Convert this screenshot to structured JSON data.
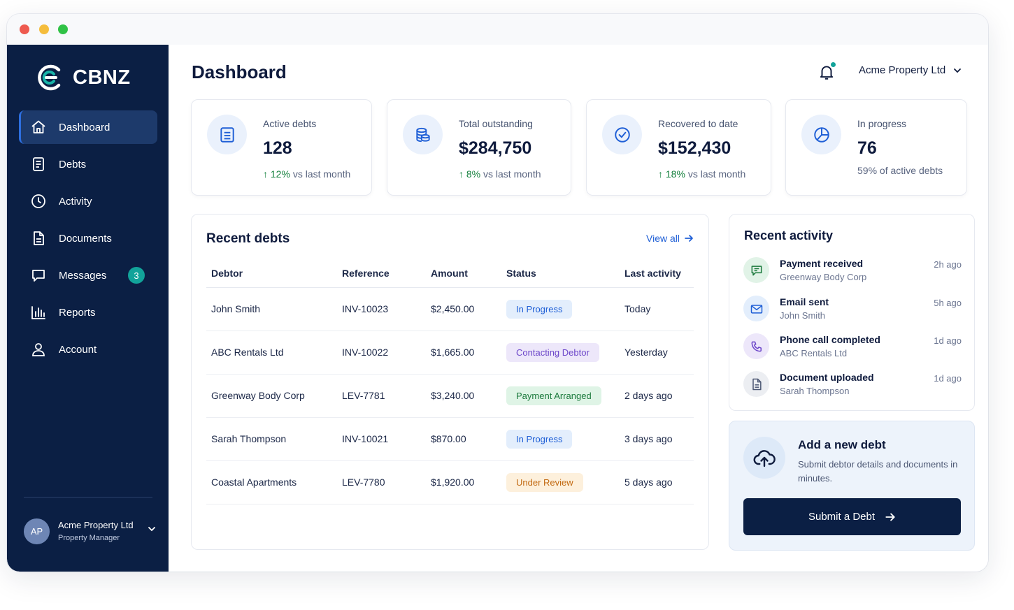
{
  "app": {
    "brand": "CBNZ"
  },
  "sidebar": {
    "items": [
      {
        "label": "Dashboard",
        "icon": "home-icon"
      },
      {
        "label": "Debts",
        "icon": "document-list-icon"
      },
      {
        "label": "Activity",
        "icon": "clock-icon"
      },
      {
        "label": "Documents",
        "icon": "file-icon"
      },
      {
        "label": "Messages",
        "icon": "chat-icon",
        "badge": "3"
      },
      {
        "label": "Reports",
        "icon": "bar-chart-icon"
      },
      {
        "label": "Account",
        "icon": "user-icon"
      }
    ],
    "user": {
      "initials": "AP",
      "name": "Acme Property Ltd",
      "role": "Property Manager"
    }
  },
  "header": {
    "title": "Dashboard",
    "org": "Acme Property Ltd"
  },
  "stats": [
    {
      "label": "Active debts",
      "value": "128",
      "delta": "12%",
      "delta_text": "vs last month",
      "icon": "list-icon"
    },
    {
      "label": "Total outstanding",
      "value": "$284,750",
      "delta": "8%",
      "delta_text": "vs last month",
      "icon": "coins-icon"
    },
    {
      "label": "Recovered to date",
      "value": "$152,430",
      "delta": "18%",
      "delta_text": "vs last month",
      "icon": "check-circle-icon"
    },
    {
      "label": "In progress",
      "value": "76",
      "sub": "59% of active debts",
      "icon": "pie-icon"
    }
  ],
  "recent_debts": {
    "title": "Recent debts",
    "view_all": "View all",
    "columns": [
      "Debtor",
      "Reference",
      "Amount",
      "Status",
      "Last activity"
    ],
    "rows": [
      {
        "debtor": "John Smith",
        "reference": "INV-10023",
        "amount": "$2,450.00",
        "status": "In Progress",
        "last": "Today"
      },
      {
        "debtor": "ABC Rentals Ltd",
        "reference": "INV-10022",
        "amount": "$1,665.00",
        "status": "Contacting Debtor",
        "last": "Yesterday"
      },
      {
        "debtor": "Greenway Body Corp",
        "reference": "LEV-7781",
        "amount": "$3,240.00",
        "status": "Payment Arranged",
        "last": "2 days ago"
      },
      {
        "debtor": "Sarah Thompson",
        "reference": "INV-10021",
        "amount": "$870.00",
        "status": "In Progress",
        "last": "3 days ago"
      },
      {
        "debtor": "Coastal Apartments",
        "reference": "LEV-7780",
        "amount": "$1,920.00",
        "status": "Under Review",
        "last": "5 days ago"
      }
    ]
  },
  "status_colors": {
    "In Progress": {
      "bg": "#e3eefc",
      "fg": "#1f5fd6"
    },
    "Contacting Debtor": {
      "bg": "#ede7fa",
      "fg": "#6b45c9"
    },
    "Payment Arranged": {
      "bg": "#dff4e6",
      "fg": "#1c7a3d"
    },
    "Under Review": {
      "bg": "#fdf0dc",
      "fg": "#c26a12"
    }
  },
  "recent_activity": {
    "title": "Recent activity",
    "items": [
      {
        "title": "Payment received",
        "sub": "Greenway Body Corp",
        "time": "2h ago",
        "icon": "message-icon"
      },
      {
        "title": "Email sent",
        "sub": "John Smith",
        "time": "5h ago",
        "icon": "mail-icon"
      },
      {
        "title": "Phone call completed",
        "sub": "ABC Rentals Ltd",
        "time": "1d ago",
        "icon": "phone-icon"
      },
      {
        "title": "Document uploaded",
        "sub": "Sarah Thompson",
        "time": "1d ago",
        "icon": "document-icon"
      }
    ]
  },
  "cta": {
    "title": "Add a new debt",
    "text": "Submit debtor details and documents in minutes.",
    "button": "Submit a Debt"
  }
}
